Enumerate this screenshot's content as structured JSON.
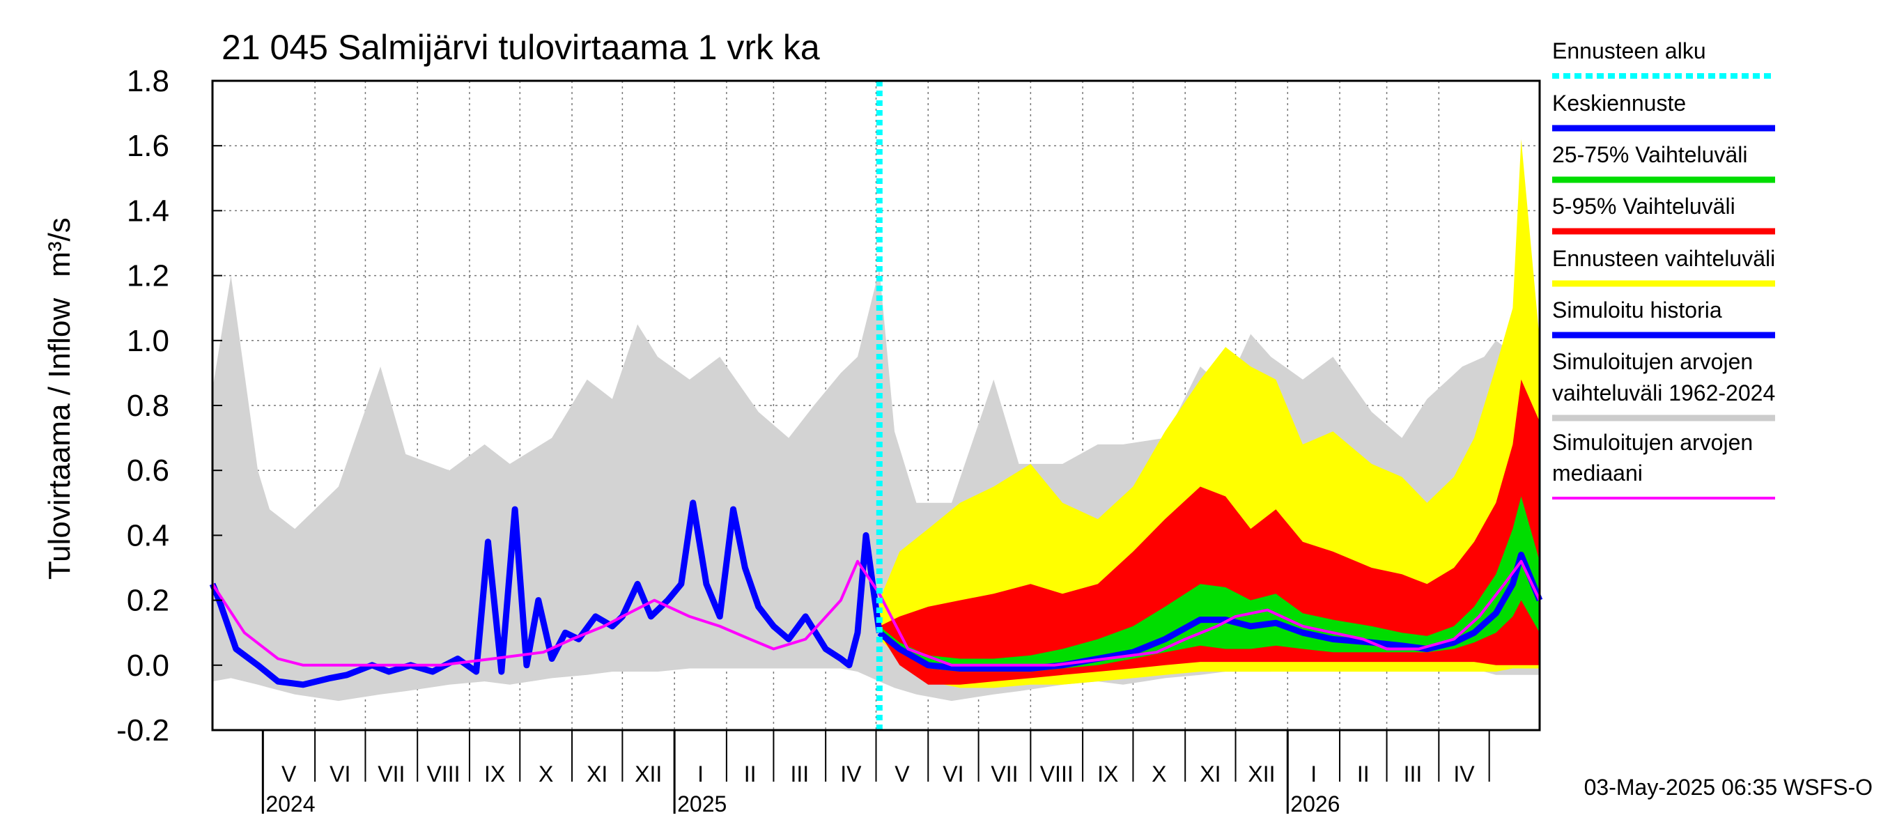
{
  "chart_data": {
    "type": "area",
    "title": "21 045 Salmijärvi tulovirtaama 1 vrk ka",
    "ylabel": "Tulovirtaama / Inflow",
    "yunit": "m³/s",
    "ylim": [
      -0.2,
      1.8
    ],
    "yticks": [
      "-0.2",
      "0.0",
      "0.2",
      "0.4",
      "0.6",
      "0.8",
      "1.0",
      "1.2",
      "1.4",
      "1.6",
      "1.8"
    ],
    "xlim": [
      "2024-04-01",
      "2026-05-31"
    ],
    "forecast_start": "2025-05-03",
    "grid": true,
    "legend_position": "right",
    "months": [
      {
        "label": "V",
        "start": "2024-05-01",
        "end": "2024-06-01"
      },
      {
        "label": "VI",
        "start": "2024-06-01",
        "end": "2024-07-01"
      },
      {
        "label": "VII",
        "start": "2024-07-01",
        "end": "2024-08-01"
      },
      {
        "label": "VIII",
        "start": "2024-08-01",
        "end": "2024-09-01"
      },
      {
        "label": "IX",
        "start": "2024-09-01",
        "end": "2024-10-01"
      },
      {
        "label": "X",
        "start": "2024-10-01",
        "end": "2024-11-01"
      },
      {
        "label": "XI",
        "start": "2024-11-01",
        "end": "2024-12-01"
      },
      {
        "label": "XII",
        "start": "2024-12-01",
        "end": "2025-01-01"
      },
      {
        "label": "I",
        "start": "2025-01-01",
        "end": "2025-02-01"
      },
      {
        "label": "II",
        "start": "2025-02-01",
        "end": "2025-03-01"
      },
      {
        "label": "III",
        "start": "2025-03-01",
        "end": "2025-04-01"
      },
      {
        "label": "IV",
        "start": "2025-04-01",
        "end": "2025-05-01"
      },
      {
        "label": "V",
        "start": "2025-05-01",
        "end": "2025-06-01"
      },
      {
        "label": "VI",
        "start": "2025-06-01",
        "end": "2025-07-01"
      },
      {
        "label": "VII",
        "start": "2025-07-01",
        "end": "2025-08-01"
      },
      {
        "label": "VIII",
        "start": "2025-08-01",
        "end": "2025-09-01"
      },
      {
        "label": "IX",
        "start": "2025-09-01",
        "end": "2025-10-01"
      },
      {
        "label": "X",
        "start": "2025-10-01",
        "end": "2025-11-01"
      },
      {
        "label": "XI",
        "start": "2025-11-01",
        "end": "2025-12-01"
      },
      {
        "label": "XII",
        "start": "2025-12-01",
        "end": "2026-01-01"
      },
      {
        "label": "I",
        "start": "2026-01-01",
        "end": "2026-02-01"
      },
      {
        "label": "II",
        "start": "2026-02-01",
        "end": "2026-03-01"
      },
      {
        "label": "III",
        "start": "2026-03-01",
        "end": "2026-04-01"
      },
      {
        "label": "IV",
        "start": "2026-04-01",
        "end": "2026-05-01"
      }
    ],
    "years": [
      {
        "label": "2024",
        "at": "2024-05-01"
      },
      {
        "label": "2025",
        "at": "2025-01-01"
      },
      {
        "label": "2026",
        "at": "2026-01-01"
      }
    ],
    "series": [
      {
        "name": "Simuloitujen arvojen vaihteluväli 1962-2024",
        "role": "band",
        "color": "#d3d3d3",
        "x": [
          "2024-04-01",
          "2024-04-12",
          "2024-04-28",
          "2024-05-05",
          "2024-05-20",
          "2024-06-15",
          "2024-07-10",
          "2024-07-25",
          "2024-08-20",
          "2024-09-10",
          "2024-09-25",
          "2024-10-20",
          "2024-11-10",
          "2024-11-25",
          "2024-12-10",
          "2024-12-22",
          "2025-01-10",
          "2025-01-28",
          "2025-02-20",
          "2025-03-10",
          "2025-03-25",
          "2025-04-10",
          "2025-04-20",
          "2025-05-03",
          "2025-05-12",
          "2025-05-25",
          "2025-06-15",
          "2025-07-10",
          "2025-07-25",
          "2025-08-20",
          "2025-09-10",
          "2025-09-25",
          "2025-10-20",
          "2025-11-10",
          "2025-11-25",
          "2025-12-10",
          "2025-12-22",
          "2026-01-10",
          "2026-01-28",
          "2026-02-20",
          "2026-03-10",
          "2026-03-25",
          "2026-04-15",
          "2026-04-28",
          "2026-05-05",
          "2026-05-31"
        ],
        "low": [
          -0.05,
          -0.04,
          -0.06,
          -0.07,
          -0.09,
          -0.11,
          -0.09,
          -0.08,
          -0.06,
          -0.05,
          -0.06,
          -0.04,
          -0.03,
          -0.02,
          -0.02,
          -0.02,
          -0.01,
          -0.01,
          -0.01,
          -0.01,
          -0.01,
          -0.01,
          -0.02,
          -0.05,
          -0.07,
          -0.09,
          -0.11,
          -0.09,
          -0.08,
          -0.06,
          -0.05,
          -0.06,
          -0.04,
          -0.03,
          -0.02,
          -0.02,
          -0.02,
          -0.01,
          -0.01,
          -0.01,
          -0.01,
          -0.01,
          -0.01,
          -0.02,
          -0.03,
          -0.03
        ],
        "high": [
          0.85,
          1.2,
          0.6,
          0.48,
          0.42,
          0.55,
          0.92,
          0.65,
          0.6,
          0.68,
          0.62,
          0.7,
          0.88,
          0.82,
          1.05,
          0.95,
          0.88,
          0.95,
          0.78,
          0.7,
          0.8,
          0.9,
          0.95,
          1.22,
          0.72,
          0.5,
          0.5,
          0.88,
          0.62,
          0.62,
          0.68,
          0.68,
          0.7,
          0.92,
          0.85,
          1.02,
          0.95,
          0.88,
          0.95,
          0.78,
          0.7,
          0.82,
          0.92,
          0.95,
          1.0,
          0.9
        ]
      },
      {
        "name": "Ennusteen vaihteluväli",
        "role": "band",
        "color": "#ffff00",
        "x": [
          "2025-05-03",
          "2025-05-15",
          "2025-06-01",
          "2025-06-20",
          "2025-07-10",
          "2025-08-01",
          "2025-08-20",
          "2025-09-10",
          "2025-10-01",
          "2025-10-20",
          "2025-11-10",
          "2025-11-25",
          "2025-12-10",
          "2025-12-25",
          "2026-01-10",
          "2026-01-28",
          "2026-02-20",
          "2026-03-10",
          "2026-03-25",
          "2026-04-10",
          "2026-04-22",
          "2026-05-05",
          "2026-05-15",
          "2026-05-20",
          "2026-05-31"
        ],
        "low": [
          0.08,
          0.02,
          -0.05,
          -0.07,
          -0.07,
          -0.06,
          -0.06,
          -0.05,
          -0.04,
          -0.03,
          -0.02,
          -0.02,
          -0.02,
          -0.02,
          -0.02,
          -0.02,
          -0.02,
          -0.02,
          -0.02,
          -0.02,
          -0.02,
          -0.02,
          -0.01,
          -0.01,
          -0.01
        ],
        "high": [
          0.2,
          0.35,
          0.42,
          0.5,
          0.55,
          0.62,
          0.5,
          0.45,
          0.55,
          0.72,
          0.88,
          0.98,
          0.92,
          0.88,
          0.68,
          0.72,
          0.62,
          0.58,
          0.5,
          0.58,
          0.7,
          0.92,
          1.1,
          1.62,
          1.0
        ]
      },
      {
        "name": "5-95% Vaihteluväli",
        "role": "band",
        "color": "#ff0000",
        "x": [
          "2025-05-03",
          "2025-05-15",
          "2025-06-01",
          "2025-06-20",
          "2025-07-10",
          "2025-08-01",
          "2025-08-20",
          "2025-09-10",
          "2025-10-01",
          "2025-10-20",
          "2025-11-10",
          "2025-11-25",
          "2025-12-10",
          "2025-12-25",
          "2026-01-10",
          "2026-01-28",
          "2026-02-20",
          "2026-03-10",
          "2026-03-25",
          "2026-04-10",
          "2026-04-22",
          "2026-05-05",
          "2026-05-15",
          "2026-05-20",
          "2026-05-31"
        ],
        "low": [
          0.1,
          0.0,
          -0.06,
          -0.06,
          -0.05,
          -0.04,
          -0.03,
          -0.02,
          -0.01,
          0.0,
          0.01,
          0.01,
          0.01,
          0.01,
          0.01,
          0.01,
          0.01,
          0.01,
          0.01,
          0.01,
          0.01,
          0.0,
          0.0,
          0.0,
          0.0
        ],
        "high": [
          0.12,
          0.15,
          0.18,
          0.2,
          0.22,
          0.25,
          0.22,
          0.25,
          0.35,
          0.45,
          0.55,
          0.52,
          0.42,
          0.48,
          0.38,
          0.35,
          0.3,
          0.28,
          0.25,
          0.3,
          0.38,
          0.5,
          0.68,
          0.88,
          0.75
        ]
      },
      {
        "name": "25-75% Vaihteluväli",
        "role": "band",
        "color": "#00dd00",
        "x": [
          "2025-05-03",
          "2025-05-15",
          "2025-06-01",
          "2025-06-20",
          "2025-07-10",
          "2025-08-01",
          "2025-08-20",
          "2025-09-10",
          "2025-10-01",
          "2025-10-20",
          "2025-11-10",
          "2025-11-25",
          "2025-12-10",
          "2025-12-25",
          "2026-01-10",
          "2026-01-28",
          "2026-02-20",
          "2026-03-10",
          "2026-03-25",
          "2026-04-10",
          "2026-04-22",
          "2026-05-05",
          "2026-05-15",
          "2026-05-20",
          "2026-05-31"
        ],
        "low": [
          0.1,
          0.04,
          -0.01,
          -0.02,
          -0.02,
          -0.02,
          -0.01,
          0.0,
          0.02,
          0.04,
          0.06,
          0.05,
          0.05,
          0.06,
          0.05,
          0.04,
          0.04,
          0.04,
          0.04,
          0.05,
          0.07,
          0.1,
          0.15,
          0.2,
          0.1
        ],
        "high": [
          0.12,
          0.07,
          0.03,
          0.02,
          0.02,
          0.03,
          0.05,
          0.08,
          0.12,
          0.18,
          0.25,
          0.24,
          0.2,
          0.22,
          0.16,
          0.14,
          0.12,
          0.1,
          0.09,
          0.12,
          0.18,
          0.28,
          0.42,
          0.52,
          0.32
        ]
      },
      {
        "name": "Simuloitu historia",
        "role": "line",
        "color": "#0000ff",
        "x": [
          "2024-04-01",
          "2024-04-05",
          "2024-04-15",
          "2024-04-28",
          "2024-05-10",
          "2024-05-25",
          "2024-06-10",
          "2024-06-20",
          "2024-07-05",
          "2024-07-15",
          "2024-07-28",
          "2024-08-10",
          "2024-08-25",
          "2024-09-05",
          "2024-09-12",
          "2024-09-20",
          "2024-09-28",
          "2024-10-05",
          "2024-10-12",
          "2024-10-20",
          "2024-10-28",
          "2024-11-05",
          "2024-11-15",
          "2024-11-25",
          "2024-12-01",
          "2024-12-10",
          "2024-12-18",
          "2024-12-28",
          "2025-01-05",
          "2025-01-12",
          "2025-01-20",
          "2025-01-28",
          "2025-02-05",
          "2025-02-12",
          "2025-02-20",
          "2025-03-01",
          "2025-03-10",
          "2025-03-20",
          "2025-04-01",
          "2025-04-10",
          "2025-04-15",
          "2025-04-20",
          "2025-04-25",
          "2025-05-03"
        ],
        "y": [
          0.25,
          0.2,
          0.05,
          0.0,
          -0.05,
          -0.06,
          -0.04,
          -0.03,
          0.0,
          -0.02,
          0.0,
          -0.02,
          0.02,
          -0.02,
          0.38,
          -0.02,
          0.48,
          0.0,
          0.2,
          0.02,
          0.1,
          0.08,
          0.15,
          0.12,
          0.15,
          0.25,
          0.15,
          0.2,
          0.25,
          0.5,
          0.25,
          0.15,
          0.48,
          0.3,
          0.18,
          0.12,
          0.08,
          0.15,
          0.05,
          0.02,
          0.0,
          0.1,
          0.4,
          0.1
        ]
      },
      {
        "name": "Keskiennuste",
        "role": "line",
        "color": "#0000ff",
        "x": [
          "2025-05-03",
          "2025-05-15",
          "2025-06-01",
          "2025-06-20",
          "2025-07-10",
          "2025-08-01",
          "2025-08-20",
          "2025-09-10",
          "2025-10-01",
          "2025-10-20",
          "2025-11-10",
          "2025-11-25",
          "2025-12-10",
          "2025-12-25",
          "2026-01-10",
          "2026-01-28",
          "2026-02-20",
          "2026-03-10",
          "2026-03-25",
          "2026-04-10",
          "2026-04-22",
          "2026-05-05",
          "2026-05-15",
          "2026-05-20",
          "2026-05-31"
        ],
        "y": [
          0.1,
          0.05,
          0.0,
          -0.01,
          -0.01,
          -0.01,
          0.0,
          0.02,
          0.04,
          0.08,
          0.14,
          0.14,
          0.12,
          0.13,
          0.1,
          0.08,
          0.07,
          0.06,
          0.05,
          0.07,
          0.1,
          0.16,
          0.25,
          0.34,
          0.2
        ]
      },
      {
        "name": "Simuloitujen arvojen mediaani",
        "role": "line",
        "color": "#ff00ff",
        "x": [
          "2024-04-01",
          "2024-04-20",
          "2024-05-10",
          "2024-05-25",
          "2024-06-15",
          "2024-07-15",
          "2024-08-15",
          "2024-09-15",
          "2024-10-15",
          "2024-11-01",
          "2024-11-20",
          "2024-12-01",
          "2024-12-20",
          "2025-01-10",
          "2025-01-28",
          "2025-02-15",
          "2025-03-01",
          "2025-03-20",
          "2025-04-10",
          "2025-04-20",
          "2025-05-03",
          "2025-05-20",
          "2025-06-15",
          "2025-07-15",
          "2025-08-15",
          "2025-09-15",
          "2025-10-15",
          "2025-11-01",
          "2025-11-20",
          "2025-12-01",
          "2025-12-20",
          "2026-01-10",
          "2026-01-28",
          "2026-02-15",
          "2026-03-01",
          "2026-03-20",
          "2026-04-10",
          "2026-04-25",
          "2026-05-10",
          "2026-05-20",
          "2026-05-31"
        ],
        "y": [
          0.25,
          0.1,
          0.02,
          0.0,
          0.0,
          0.0,
          0.0,
          0.02,
          0.04,
          0.08,
          0.12,
          0.15,
          0.2,
          0.15,
          0.12,
          0.08,
          0.05,
          0.08,
          0.2,
          0.32,
          0.22,
          0.05,
          0.0,
          0.0,
          0.0,
          0.02,
          0.04,
          0.08,
          0.12,
          0.15,
          0.17,
          0.12,
          0.1,
          0.08,
          0.05,
          0.05,
          0.08,
          0.15,
          0.25,
          0.32,
          0.2
        ]
      }
    ],
    "legend": [
      {
        "label": "Ennusteen alku",
        "color": "#00ffff",
        "style": "dotted"
      },
      {
        "label": "Keskiennuste",
        "color": "#0000ff",
        "style": "solid"
      },
      {
        "label": "25-75% Vaihteluväli",
        "color": "#00dd00",
        "style": "solid"
      },
      {
        "label": "5-95% Vaihteluväli",
        "color": "#ff0000",
        "style": "solid"
      },
      {
        "label": "Ennusteen vaihteluväli",
        "color": "#ffff00",
        "style": "solid"
      },
      {
        "label": "Simuloitu historia",
        "color": "#0000ff",
        "style": "solid"
      },
      {
        "label": "Simuloitujen arvojen\nvaihteluväli 1962-2024",
        "color": "#cccccc",
        "style": "solid"
      },
      {
        "label": "Simuloitujen arvojen\nmediaani",
        "color": "#ff00ff",
        "style": "solid"
      }
    ],
    "timestamp": "03-May-2025 06:35 WSFS-O"
  }
}
